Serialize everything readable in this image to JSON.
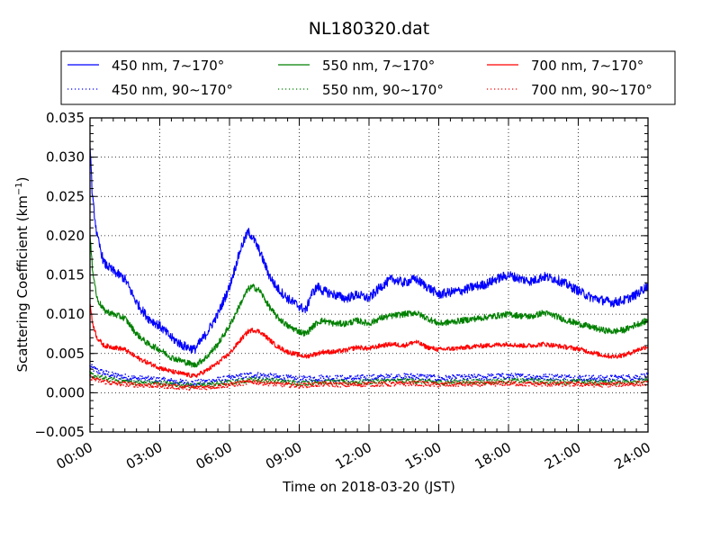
{
  "chart_data": {
    "type": "line",
    "title": "NL180320.dat",
    "xlabel": "Time on 2018-03-20 (JST)",
    "ylabel": "Scattering Coefficient (km⁻¹)",
    "ylabel_base": "Scattering Coefficient (km",
    "ylabel_sup": "−1",
    "ylabel_close": ")",
    "xlim": [
      0,
      24
    ],
    "ylim": [
      -0.005,
      0.035
    ],
    "grid": true,
    "legend_position": "top, above plot, 3 columns",
    "x_ticks": [
      {
        "value": 0,
        "label": "00:00"
      },
      {
        "value": 3,
        "label": "03:00"
      },
      {
        "value": 6,
        "label": "06:00"
      },
      {
        "value": 9,
        "label": "09:00"
      },
      {
        "value": 12,
        "label": "12:00"
      },
      {
        "value": 15,
        "label": "15:00"
      },
      {
        "value": 18,
        "label": "18:00"
      },
      {
        "value": 21,
        "label": "21:00"
      },
      {
        "value": 24,
        "label": "24:00"
      }
    ],
    "y_ticks": [
      {
        "value": -0.005,
        "label": "−0.005"
      },
      {
        "value": 0.0,
        "label": "0.000"
      },
      {
        "value": 0.005,
        "label": "0.005"
      },
      {
        "value": 0.01,
        "label": "0.010"
      },
      {
        "value": 0.015,
        "label": "0.015"
      },
      {
        "value": 0.02,
        "label": "0.020"
      },
      {
        "value": 0.025,
        "label": "0.025"
      },
      {
        "value": 0.03,
        "label": "0.030"
      },
      {
        "value": 0.035,
        "label": "0.035"
      }
    ],
    "x_unit": "hours",
    "series": [
      {
        "name": "450 nm, 7∼170°",
        "color": "#0000ff",
        "style": "solid",
        "noise": 0.0006,
        "x": [
          0,
          0.1,
          0.3,
          0.6,
          1.0,
          1.5,
          2.0,
          2.5,
          3.0,
          3.5,
          4.0,
          4.5,
          5.0,
          5.5,
          6.0,
          6.5,
          6.8,
          7.0,
          7.3,
          7.7,
          8.0,
          8.5,
          9.0,
          9.3,
          9.5,
          9.8,
          10.0,
          10.5,
          11.0,
          11.5,
          12.0,
          12.5,
          13.0,
          13.5,
          14.0,
          14.5,
          15.0,
          15.5,
          16.0,
          16.5,
          17.0,
          17.5,
          18.0,
          18.5,
          19.0,
          19.5,
          20.0,
          20.5,
          21.0,
          21.5,
          22.0,
          22.5,
          23.0,
          23.5,
          24.0
        ],
        "y": [
          0.032,
          0.025,
          0.02,
          0.0165,
          0.0155,
          0.0145,
          0.0115,
          0.0095,
          0.0085,
          0.007,
          0.006,
          0.0055,
          0.0075,
          0.01,
          0.0135,
          0.0185,
          0.0205,
          0.0198,
          0.018,
          0.015,
          0.0135,
          0.012,
          0.011,
          0.0105,
          0.0125,
          0.0135,
          0.013,
          0.0125,
          0.012,
          0.0125,
          0.012,
          0.0135,
          0.0145,
          0.014,
          0.0145,
          0.0135,
          0.0125,
          0.0128,
          0.013,
          0.0135,
          0.0138,
          0.0145,
          0.015,
          0.0145,
          0.0142,
          0.0148,
          0.0145,
          0.0138,
          0.013,
          0.0122,
          0.0118,
          0.0115,
          0.0118,
          0.0125,
          0.0137
        ]
      },
      {
        "name": "550 nm, 7∼170°",
        "color": "#008000",
        "style": "solid",
        "noise": 0.0004,
        "x": [
          0,
          0.1,
          0.3,
          0.6,
          1.0,
          1.5,
          2.0,
          2.5,
          3.0,
          3.5,
          4.0,
          4.5,
          5.0,
          5.5,
          6.0,
          6.5,
          6.8,
          7.0,
          7.3,
          7.7,
          8.0,
          8.5,
          9.0,
          9.3,
          9.5,
          9.8,
          10.0,
          10.5,
          11.0,
          11.5,
          12.0,
          12.5,
          13.0,
          13.5,
          14.0,
          14.5,
          15.0,
          15.5,
          16.0,
          16.5,
          17.0,
          17.5,
          18.0,
          18.5,
          19.0,
          19.5,
          20.0,
          20.5,
          21.0,
          21.5,
          22.0,
          22.5,
          23.0,
          23.5,
          24.0
        ],
        "y": [
          0.02,
          0.016,
          0.012,
          0.0105,
          0.01,
          0.0095,
          0.0075,
          0.0062,
          0.0055,
          0.0045,
          0.004,
          0.0035,
          0.0045,
          0.0062,
          0.0085,
          0.0115,
          0.0132,
          0.0135,
          0.013,
          0.011,
          0.0098,
          0.0085,
          0.0078,
          0.0075,
          0.0082,
          0.009,
          0.0092,
          0.0088,
          0.0088,
          0.0092,
          0.0088,
          0.0095,
          0.0098,
          0.01,
          0.0102,
          0.0095,
          0.0088,
          0.009,
          0.0092,
          0.0094,
          0.0096,
          0.0098,
          0.01,
          0.0098,
          0.0097,
          0.0102,
          0.0098,
          0.0092,
          0.0088,
          0.0084,
          0.008,
          0.0078,
          0.008,
          0.0087,
          0.0092
        ]
      },
      {
        "name": "700 nm, 7∼170°",
        "color": "#ff0000",
        "style": "solid",
        "noise": 0.0003,
        "x": [
          0,
          0.1,
          0.3,
          0.6,
          1.0,
          1.5,
          2.0,
          2.5,
          3.0,
          3.5,
          4.0,
          4.5,
          5.0,
          5.5,
          6.0,
          6.5,
          6.8,
          7.0,
          7.3,
          7.7,
          8.0,
          8.5,
          9.0,
          9.3,
          9.5,
          9.8,
          10.0,
          10.5,
          11.0,
          11.5,
          12.0,
          12.5,
          13.0,
          13.5,
          14.0,
          14.5,
          15.0,
          15.5,
          16.0,
          16.5,
          17.0,
          17.5,
          18.0,
          18.5,
          19.0,
          19.5,
          20.0,
          20.5,
          21.0,
          21.5,
          22.0,
          22.5,
          23.0,
          23.5,
          24.0
        ],
        "y": [
          0.0115,
          0.009,
          0.007,
          0.006,
          0.0058,
          0.0055,
          0.0045,
          0.0038,
          0.0032,
          0.0027,
          0.0024,
          0.0021,
          0.0028,
          0.0038,
          0.005,
          0.0068,
          0.0078,
          0.008,
          0.0078,
          0.0068,
          0.006,
          0.0052,
          0.0048,
          0.0046,
          0.0048,
          0.005,
          0.0052,
          0.0052,
          0.0054,
          0.0058,
          0.0056,
          0.006,
          0.0062,
          0.006,
          0.0065,
          0.0058,
          0.0055,
          0.0056,
          0.0057,
          0.0059,
          0.006,
          0.0061,
          0.0062,
          0.006,
          0.006,
          0.0062,
          0.006,
          0.0058,
          0.0056,
          0.0052,
          0.0048,
          0.0046,
          0.0048,
          0.0054,
          0.0059
        ]
      },
      {
        "name": "450 nm, 90∼170°",
        "color": "#0000ff",
        "style": "dotted",
        "noise": 0.0004,
        "x": [
          0,
          0.3,
          1.0,
          2.0,
          3.0,
          4.0,
          4.5,
          5.0,
          6.0,
          7.0,
          8.0,
          9.0,
          10.0,
          11.0,
          12.0,
          13.0,
          14.0,
          15.0,
          16.0,
          17.0,
          18.0,
          19.0,
          20.0,
          21.0,
          22.0,
          23.0,
          24.0
        ],
        "y": [
          0.0033,
          0.0028,
          0.0022,
          0.0018,
          0.0016,
          0.0013,
          0.0012,
          0.0014,
          0.0018,
          0.0023,
          0.002,
          0.0017,
          0.0019,
          0.0018,
          0.0019,
          0.002,
          0.0021,
          0.0018,
          0.0019,
          0.002,
          0.0021,
          0.002,
          0.002,
          0.0019,
          0.0018,
          0.0019,
          0.0021
        ]
      },
      {
        "name": "550 nm, 90∼170°",
        "color": "#008000",
        "style": "dotted",
        "noise": 0.0003,
        "x": [
          0,
          0.3,
          1.0,
          2.0,
          3.0,
          4.0,
          4.5,
          5.0,
          6.0,
          7.0,
          8.0,
          9.0,
          10.0,
          11.0,
          12.0,
          13.0,
          14.0,
          15.0,
          16.0,
          17.0,
          18.0,
          19.0,
          20.0,
          21.0,
          22.0,
          23.0,
          24.0
        ],
        "y": [
          0.0024,
          0.002,
          0.0016,
          0.0013,
          0.0012,
          0.001,
          0.0009,
          0.001,
          0.0013,
          0.0017,
          0.0015,
          0.0012,
          0.0014,
          0.0013,
          0.0014,
          0.0015,
          0.0015,
          0.0013,
          0.0014,
          0.0014,
          0.0015,
          0.0015,
          0.0014,
          0.0014,
          0.0013,
          0.0014,
          0.0015
        ]
      },
      {
        "name": "700 nm, 90∼170°",
        "color": "#ff0000",
        "style": "dotted",
        "noise": 0.0003,
        "x": [
          0,
          0.3,
          1.0,
          2.0,
          3.0,
          4.0,
          4.5,
          5.0,
          6.0,
          7.0,
          8.0,
          9.0,
          10.0,
          11.0,
          12.0,
          13.0,
          14.0,
          15.0,
          16.0,
          17.0,
          18.0,
          19.0,
          20.0,
          21.0,
          22.0,
          23.0,
          24.0
        ],
        "y": [
          0.002,
          0.0016,
          0.0012,
          0.001,
          0.0009,
          0.0007,
          0.0006,
          0.0007,
          0.001,
          0.0014,
          0.0011,
          0.0009,
          0.0011,
          0.001,
          0.0011,
          0.0011,
          0.0012,
          0.001,
          0.0011,
          0.0011,
          0.0012,
          0.0011,
          0.0011,
          0.0011,
          0.001,
          0.0011,
          0.0012
        ]
      }
    ]
  }
}
